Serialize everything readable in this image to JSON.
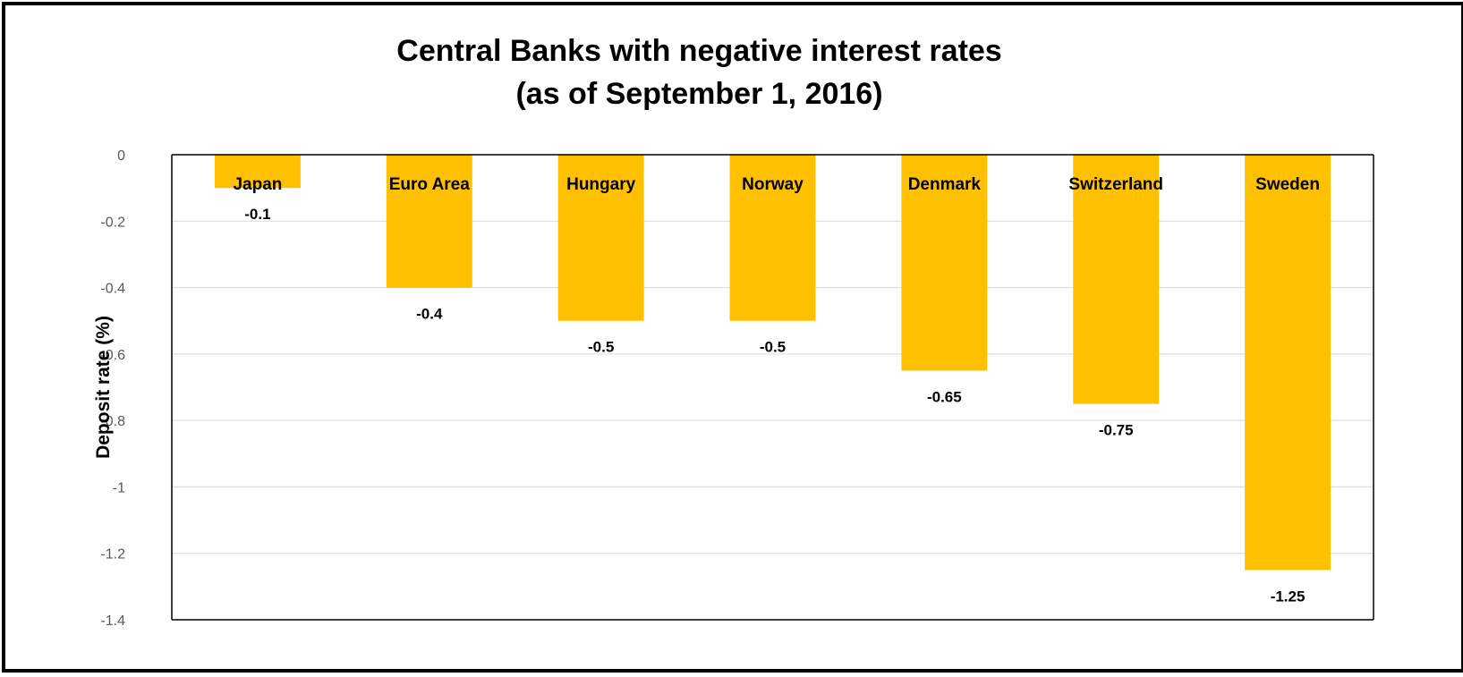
{
  "chart_data": {
    "type": "bar",
    "title": "Central Banks with negative interest rates",
    "subtitle": "(as of September 1, 2016)",
    "xlabel": "",
    "ylabel": "Deposit rate (%)",
    "categories": [
      "Japan",
      "Euro Area",
      "Hungary",
      "Norway",
      "Denmark",
      "Switzerland",
      "Sweden"
    ],
    "values": [
      -0.1,
      -0.4,
      -0.5,
      -0.5,
      -0.65,
      -0.75,
      -1.25
    ],
    "data_labels": [
      "-0.1",
      "-0.4",
      "-0.5",
      "-0.5",
      "-0.65",
      "-0.75",
      "-1.25"
    ],
    "ylim": [
      -1.4,
      0
    ],
    "yticks": [
      0,
      -0.2,
      -0.4,
      -0.6,
      -0.8,
      -1,
      -1.2,
      -1.4
    ],
    "ytick_labels": [
      "0",
      "-0.2",
      "-0.4",
      "-0.6",
      "-0.8",
      "-1",
      "-1.2",
      "-1.4"
    ],
    "grid": true,
    "legend": "none",
    "colors": {
      "bar": "#FFC000",
      "grid": "#D9D9D9",
      "axis": "#000000",
      "frame": "#000000"
    }
  }
}
